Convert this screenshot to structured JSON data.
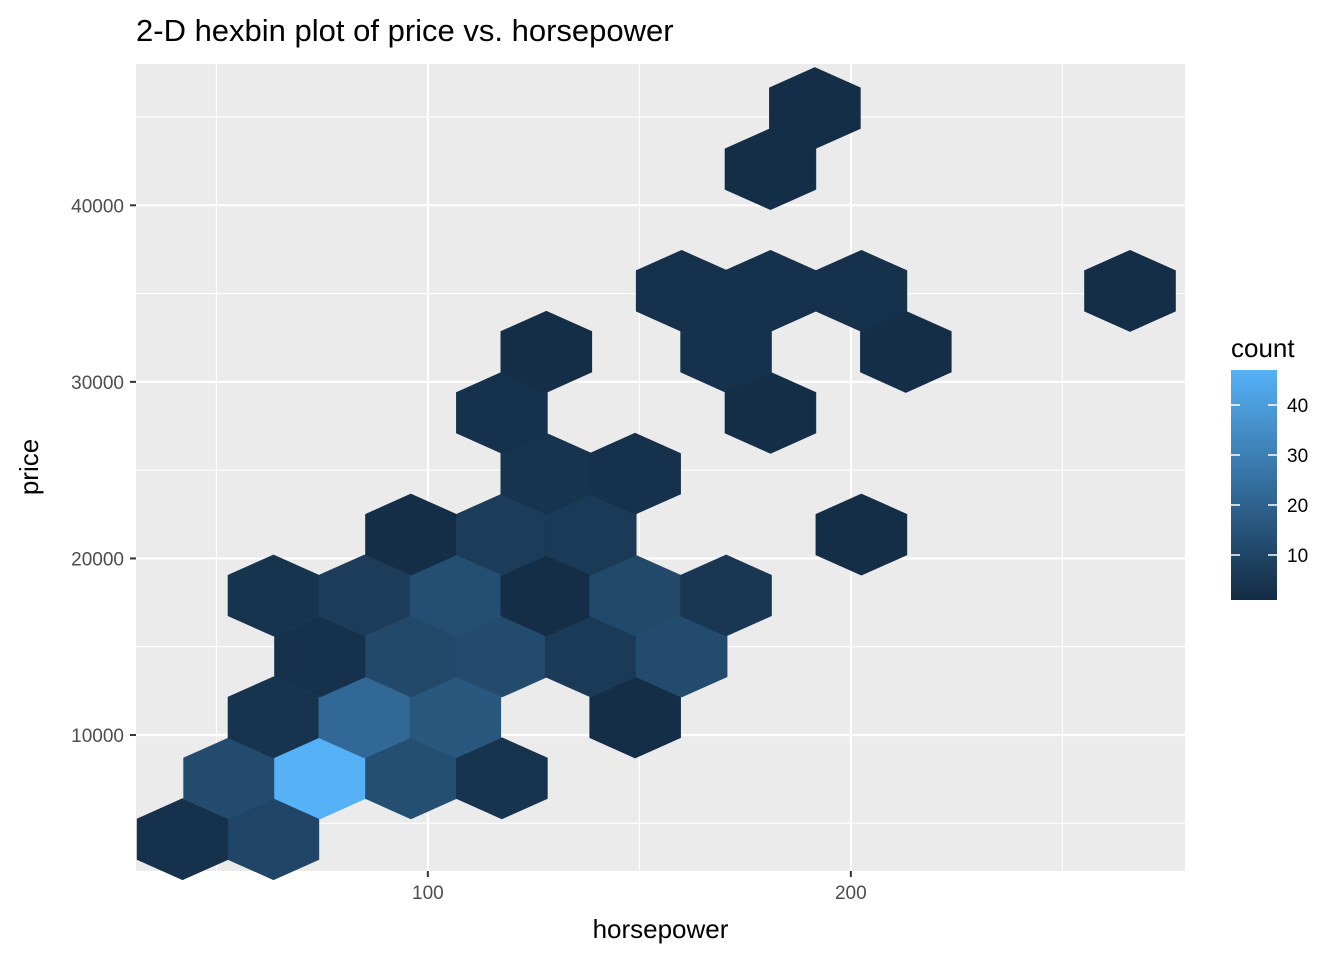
{
  "chart_data": {
    "type": "hexbin",
    "title": "2-D hexbin plot of price vs. horsepower",
    "xlabel": "horsepower",
    "ylabel": "price",
    "xlim": [
      31,
      279
    ],
    "ylim": [
      2300,
      48000
    ],
    "x_ticks": [
      100,
      200
    ],
    "x_minor_ticks": [
      50,
      150,
      250
    ],
    "y_ticks": [
      10000,
      20000,
      30000,
      40000
    ],
    "y_minor_ticks": [
      5000,
      15000,
      25000,
      35000,
      45000
    ],
    "grid": true,
    "legend": {
      "title": "count",
      "position": "right",
      "ticks": [
        10,
        20,
        30,
        40
      ],
      "range": [
        1,
        47
      ],
      "color_low": "#132b43",
      "color_high": "#56b1f7"
    },
    "bin_width": 21.5,
    "bins": [
      {
        "x": 42,
        "y": 4100,
        "count": 3
      },
      {
        "x": 63.5,
        "y": 4100,
        "count": 10
      },
      {
        "x": 53,
        "y": 7550,
        "count": 12
      },
      {
        "x": 74.5,
        "y": 7550,
        "count": 47
      },
      {
        "x": 96,
        "y": 7550,
        "count": 13
      },
      {
        "x": 117.5,
        "y": 7550,
        "count": 4
      },
      {
        "x": 63.5,
        "y": 11000,
        "count": 4
      },
      {
        "x": 85,
        "y": 11000,
        "count": 22
      },
      {
        "x": 106.5,
        "y": 11000,
        "count": 16
      },
      {
        "x": 149,
        "y": 11000,
        "count": 2
      },
      {
        "x": 74.5,
        "y": 14450,
        "count": 3
      },
      {
        "x": 96,
        "y": 14450,
        "count": 11
      },
      {
        "x": 117.5,
        "y": 14450,
        "count": 12
      },
      {
        "x": 138.5,
        "y": 14450,
        "count": 6
      },
      {
        "x": 160,
        "y": 14450,
        "count": 12
      },
      {
        "x": 63.5,
        "y": 17900,
        "count": 4
      },
      {
        "x": 85,
        "y": 17900,
        "count": 7
      },
      {
        "x": 106.5,
        "y": 17900,
        "count": 13
      },
      {
        "x": 128,
        "y": 17900,
        "count": 2
      },
      {
        "x": 149,
        "y": 17900,
        "count": 11
      },
      {
        "x": 170.5,
        "y": 17900,
        "count": 5
      },
      {
        "x": 96,
        "y": 21350,
        "count": 2
      },
      {
        "x": 117.5,
        "y": 21350,
        "count": 7
      },
      {
        "x": 138.5,
        "y": 21350,
        "count": 6
      },
      {
        "x": 202.5,
        "y": 21350,
        "count": 2
      },
      {
        "x": 128,
        "y": 24800,
        "count": 4
      },
      {
        "x": 149,
        "y": 24800,
        "count": 3
      },
      {
        "x": 117.5,
        "y": 28250,
        "count": 3
      },
      {
        "x": 181,
        "y": 28250,
        "count": 2
      },
      {
        "x": 128,
        "y": 31700,
        "count": 2
      },
      {
        "x": 170.5,
        "y": 31700,
        "count": 3
      },
      {
        "x": 213,
        "y": 31700,
        "count": 2
      },
      {
        "x": 160,
        "y": 35150,
        "count": 3
      },
      {
        "x": 181,
        "y": 35150,
        "count": 3
      },
      {
        "x": 202.5,
        "y": 35150,
        "count": 3
      },
      {
        "x": 266,
        "y": 35150,
        "count": 2
      },
      {
        "x": 181,
        "y": 42050,
        "count": 2
      },
      {
        "x": 191.5,
        "y": 45500,
        "count": 2
      }
    ]
  }
}
